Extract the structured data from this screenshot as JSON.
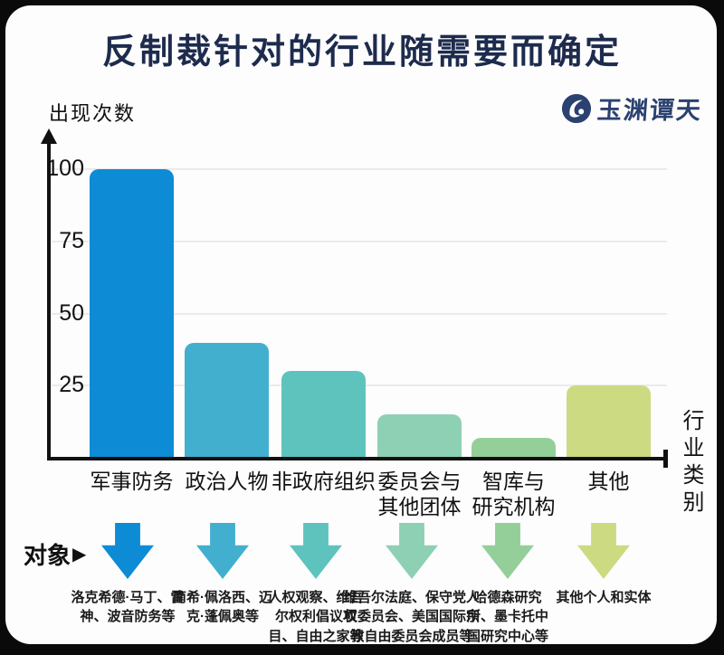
{
  "page": {
    "title": "反制裁针对的行业随需要而确定"
  },
  "logo": {
    "name": "玉渊谭天"
  },
  "chart_data": {
    "type": "bar",
    "title": "反制裁针对的行业随需要而确定",
    "ylabel": "出现次数",
    "xlabel": "行业类别",
    "ylim": [
      0,
      110
    ],
    "yticks": [
      100,
      75,
      50,
      25
    ],
    "grid": true,
    "legend": false,
    "categories": [
      "军事防务",
      "政治人物",
      "非政府组织",
      "委员会与\n其他团体",
      "智库与\n研究机构",
      "其他"
    ],
    "values": [
      100,
      40,
      30,
      15,
      7,
      25
    ],
    "bar_colors": [
      "#0e8bd5",
      "#43afcf",
      "#5fc3bd",
      "#8ed0b4",
      "#94ce99",
      "#ccdb82"
    ]
  },
  "targets": {
    "label": "对象",
    "marker": "▶",
    "items": [
      {
        "text": "洛克希德·马丁、雷神、波音防务等",
        "color": "#0e8bd5"
      },
      {
        "text": "南希·佩洛西、迈克·蓬佩奥等",
        "color": "#43afcf"
      },
      {
        "text": "人权观察、维吾尔权利倡议项目、自由之家等",
        "color": "#5fc3bd"
      },
      {
        "text": "维吾尔法庭、保守党人权委员会、美国国际宗教自由委员会成员等",
        "color": "#8ed0b4"
      },
      {
        "text": "哈德森研究所、墨卡托中国研究中心等",
        "color": "#94ce99"
      },
      {
        "text": "其他个人和实体",
        "color": "#ccdb82"
      }
    ]
  },
  "colors": {
    "title": "#1d2b4d",
    "axis": "#111111",
    "grid": "#ebebeb",
    "card_background": "#fdfdfd",
    "frame": "#0a0a0a",
    "logo": "#2b4170"
  }
}
